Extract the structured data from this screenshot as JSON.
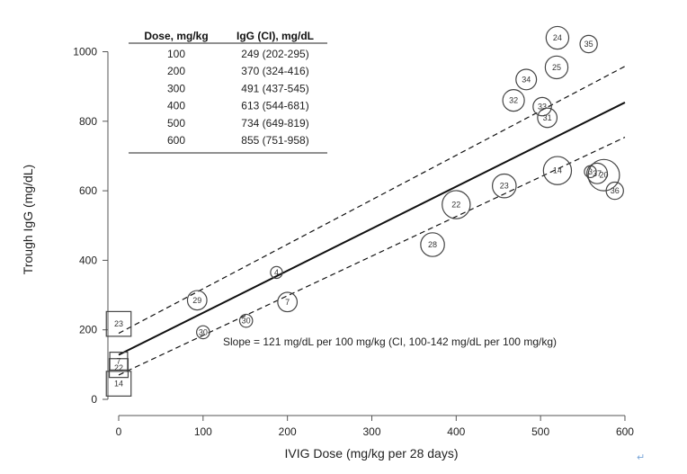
{
  "chart_data": {
    "type": "scatter",
    "xlabel": "IVIG Dose (mg/kg per 28 days)",
    "ylabel": "Trough IgG (mg/dL)",
    "xlim": [
      -10,
      600
    ],
    "ylim": [
      0,
      1050
    ],
    "xticks": [
      0,
      100,
      200,
      300,
      400,
      500,
      600
    ],
    "yticks": [
      0,
      200,
      400,
      600,
      800,
      1000
    ],
    "regression": {
      "intercept": 128,
      "slope": 1.21
    },
    "confidence_band": {
      "upper": {
        "intercept": 190,
        "slope": 1.28
      },
      "lower": {
        "intercept": 70,
        "slope": 1.14
      }
    },
    "annotation": "Slope = 121 mg/dL per 100 mg/kg (CI, 100-142 mg/dL per 100 mg/kg)",
    "table": {
      "headers": [
        "Dose, mg/kg",
        "IgG (CI), mg/dL"
      ],
      "rows": [
        [
          "100",
          "249 (202-295)"
        ],
        [
          "200",
          "370 (324-416)"
        ],
        [
          "300",
          "491 (437-545)"
        ],
        [
          "400",
          "613 (544-681)"
        ],
        [
          "500",
          "734 (649-819)"
        ],
        [
          "600",
          "855 (751-958)"
        ]
      ]
    },
    "circles": [
      {
        "label": "29",
        "x": 93,
        "y": 285,
        "size": 0.9
      },
      {
        "label": "4",
        "x": 187,
        "y": 365,
        "size": 0.55
      },
      {
        "label": "7",
        "x": 200,
        "y": 280,
        "size": 0.9
      },
      {
        "label": "30",
        "x": 100,
        "y": 193,
        "size": 0.6
      },
      {
        "label": "30",
        "x": 151,
        "y": 226,
        "size": 0.6
      },
      {
        "label": "28",
        "x": 372,
        "y": 445,
        "size": 1.1
      },
      {
        "label": "22",
        "x": 400,
        "y": 560,
        "size": 1.3
      },
      {
        "label": "23",
        "x": 457,
        "y": 614,
        "size": 1.1
      },
      {
        "label": "14",
        "x": 520,
        "y": 658,
        "size": 1.3
      },
      {
        "label": "34",
        "x": 483,
        "y": 920,
        "size": 0.95
      },
      {
        "label": "32",
        "x": 468,
        "y": 860,
        "size": 1.0
      },
      {
        "label": "33",
        "x": 502,
        "y": 842,
        "size": 0.85
      },
      {
        "label": "31",
        "x": 508,
        "y": 810,
        "size": 0.9
      },
      {
        "label": "25",
        "x": 519,
        "y": 955,
        "size": 1.05
      },
      {
        "label": "24",
        "x": 520,
        "y": 1040,
        "size": 1.05
      },
      {
        "label": "35",
        "x": 557,
        "y": 1022,
        "size": 0.8
      },
      {
        "label": "3",
        "x": 559,
        "y": 655,
        "size": 0.55
      },
      {
        "label": "37",
        "x": 567,
        "y": 650,
        "size": 0.95
      },
      {
        "label": "20",
        "x": 575,
        "y": 645,
        "size": 1.45
      },
      {
        "label": "36",
        "x": 588,
        "y": 600,
        "size": 0.8
      }
    ],
    "squares": [
      {
        "label": "23",
        "x": 0,
        "y": 217,
        "size": 1.25
      },
      {
        "label": "7",
        "x": 0,
        "y": 110,
        "size": 0.9
      },
      {
        "label": "22",
        "x": 0,
        "y": 90,
        "size": 0.95
      },
      {
        "label": "14",
        "x": 0,
        "y": 45,
        "size": 1.25
      }
    ]
  }
}
